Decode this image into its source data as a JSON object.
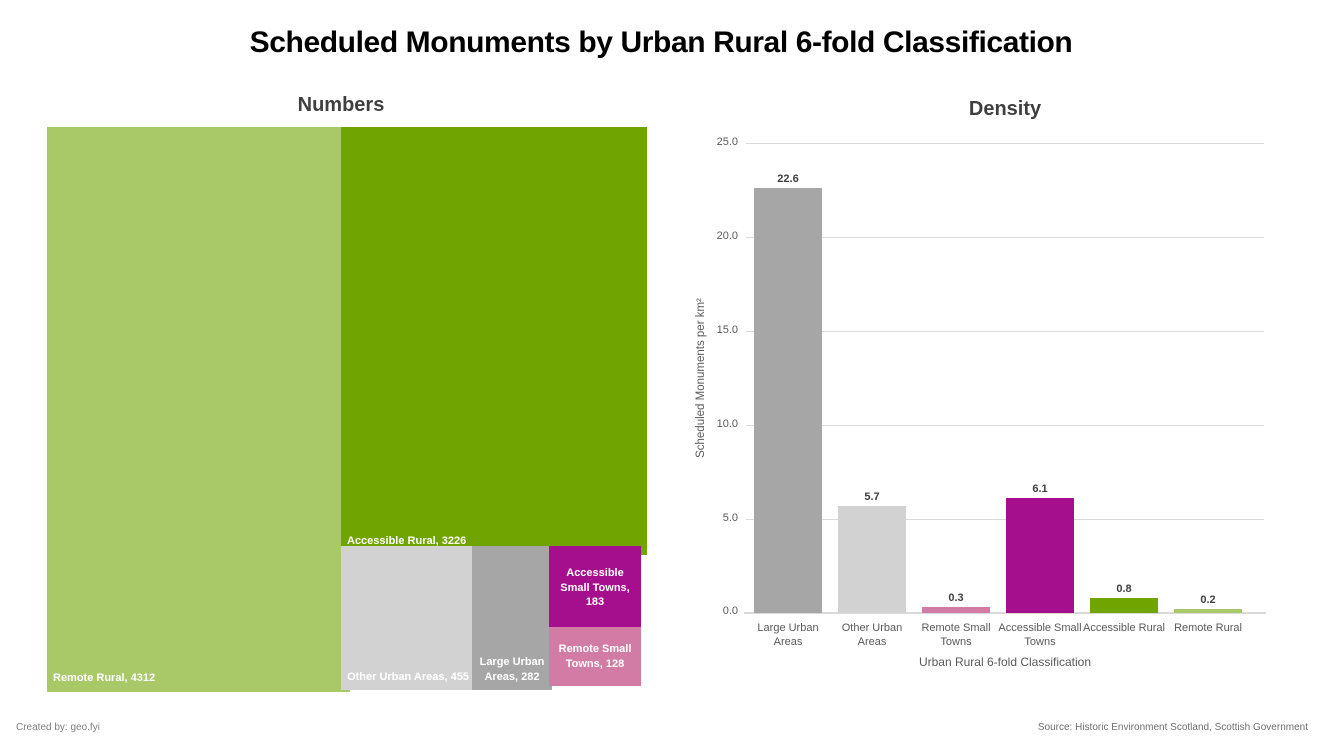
{
  "header": {
    "title": "Scheduled Monuments by Urban Rural 6-fold Classification"
  },
  "footer": {
    "created_by": "Created by: geo.fyi",
    "source": "Source: Historic Environment Scotland, Scottish Government"
  },
  "colors": {
    "light_green": "#a9c969",
    "dark_green": "#70a401",
    "light_gray": "#d2d2d2",
    "mid_gray": "#a6a6a6",
    "magenta": "#a50f8e",
    "pink": "#d27ba4",
    "gridline": "#d9d9d9",
    "axis_text": "#595959",
    "title_text": "#000000",
    "panel_title_text": "#3f3f3f"
  },
  "chart_data": [
    {
      "type": "treemap",
      "title": "Numbers",
      "categories": [
        "Remote Rural",
        "Accessible Rural",
        "Other Urban Areas",
        "Large Urban Areas",
        "Accessible Small Towns",
        "Remote Small Towns"
      ],
      "values": [
        4312,
        3226,
        455,
        282,
        183,
        128
      ],
      "labels": [
        "Remote Rural, 4312",
        "Accessible Rural, 3226",
        "Other Urban Areas, 455",
        "Large Urban Areas, 282",
        "Accessible Small Towns, 183",
        "Remote Small Towns, 128"
      ],
      "colors": [
        "#a9c969",
        "#70a401",
        "#d2d2d2",
        "#a6a6a6",
        "#a50f8e",
        "#d27ba4"
      ]
    },
    {
      "type": "bar",
      "title": "Density",
      "categories": [
        "Large Urban Areas",
        "Other Urban Areas",
        "Remote Small Towns",
        "Accessible Small Towns",
        "Accessible Rural",
        "Remote Rural"
      ],
      "values": [
        22.6,
        5.7,
        0.3,
        6.1,
        0.8,
        0.2
      ],
      "value_labels": [
        "22.6",
        "5.7",
        "0.3",
        "6.1",
        "0.8",
        "0.2"
      ],
      "colors": [
        "#a6a6a6",
        "#d2d2d2",
        "#d27ba4",
        "#a50f8e",
        "#70a401",
        "#a9c969"
      ],
      "xlabel": "Urban Rural 6-fold Classification",
      "ylabel": "Scheduled Monuments per km²",
      "ylim": [
        0,
        25
      ],
      "y_ticks": [
        "0.0",
        "5.0",
        "10.0",
        "15.0",
        "20.0",
        "25.0"
      ],
      "grid": true,
      "legend": false
    }
  ]
}
